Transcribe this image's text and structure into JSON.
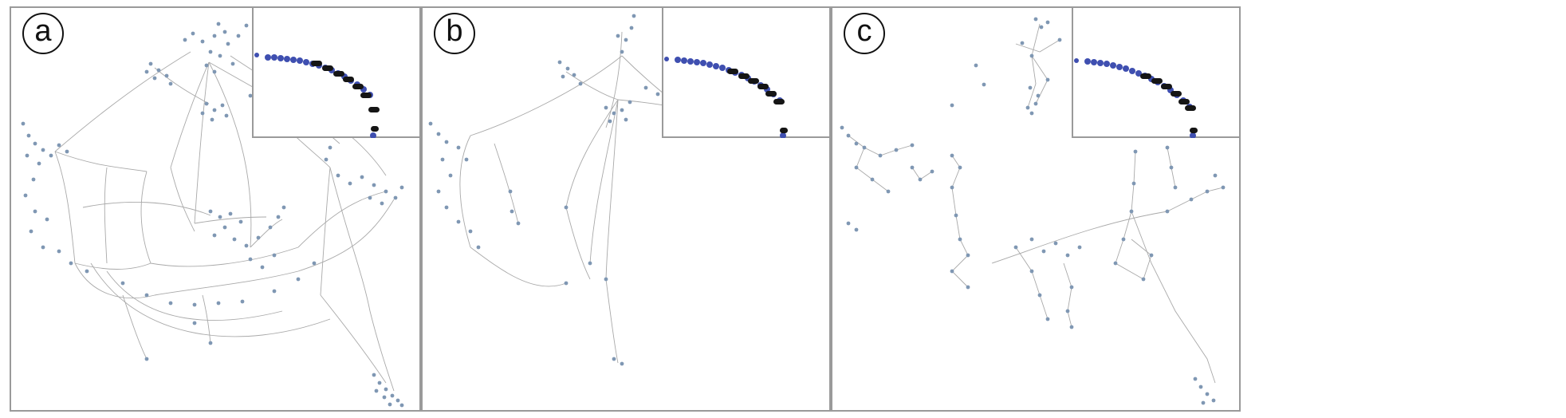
{
  "figure": {
    "panels": [
      {
        "id": "a",
        "label": "a"
      },
      {
        "id": "b",
        "label": "b"
      },
      {
        "id": "c",
        "label": "c"
      }
    ]
  },
  "colors": {
    "frame": "#9a9a9a",
    "edge": "#a9a9a9",
    "node": "#7f97b3",
    "inset_blue": "#3f4fb0",
    "inset_black": "#151515"
  }
}
